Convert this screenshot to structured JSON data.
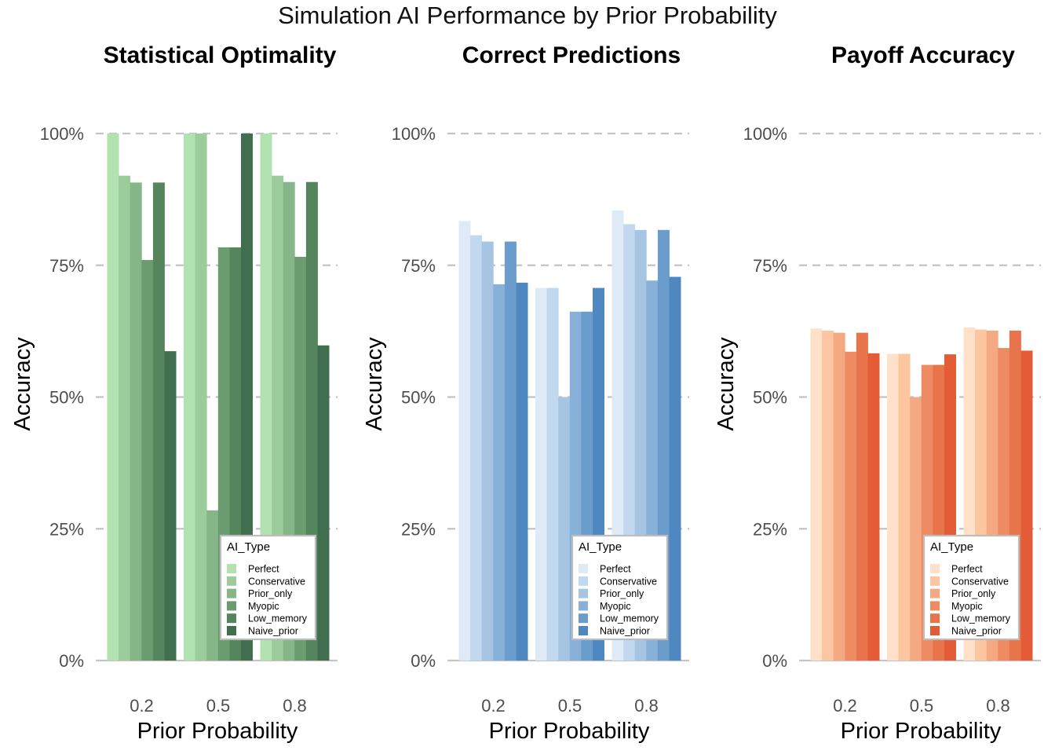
{
  "figure": {
    "title": "Simulation AI Performance by Prior Probability"
  },
  "chart_data": [
    {
      "type": "bar",
      "title": "Statistical Optimality",
      "xlabel": "Prior Probability",
      "ylabel": "Accuracy",
      "categories": [
        "0.2",
        "0.5",
        "0.8"
      ],
      "ylim": [
        0,
        1
      ],
      "yticks": [
        "0%",
        "25%",
        "50%",
        "75%",
        "100%"
      ],
      "grid": "horizontal dashed",
      "legend": {
        "title": "AI_Type",
        "placement": "bottom-right"
      },
      "series": [
        {
          "name": "Perfect",
          "color": "#b3e2b1",
          "values": [
            1.0,
            1.0,
            1.0
          ]
        },
        {
          "name": "Conservative",
          "color": "#9ccb9c",
          "values": [
            0.92,
            1.0,
            0.92
          ]
        },
        {
          "name": "Prior_only",
          "color": "#86b587",
          "values": [
            0.907,
            0.285,
            0.908
          ]
        },
        {
          "name": "Myopic",
          "color": "#6b9c6f",
          "values": [
            0.76,
            0.784,
            0.766
          ]
        },
        {
          "name": "Low_memory",
          "color": "#55855d",
          "values": [
            0.907,
            0.784,
            0.908
          ]
        },
        {
          "name": "Naive_prior",
          "color": "#416e4e",
          "values": [
            0.587,
            1.0,
            0.598
          ]
        }
      ]
    },
    {
      "type": "bar",
      "title": "Correct Predictions",
      "xlabel": "Prior Probability",
      "ylabel": "Accuracy",
      "categories": [
        "0.2",
        "0.5",
        "0.8"
      ],
      "ylim": [
        0,
        1
      ],
      "yticks": [
        "0%",
        "25%",
        "50%",
        "75%",
        "100%"
      ],
      "grid": "horizontal dashed",
      "legend": {
        "title": "AI_Type",
        "placement": "bottom-right"
      },
      "series": [
        {
          "name": "Perfect",
          "color": "#deebf7",
          "values": [
            0.834,
            0.707,
            0.854
          ]
        },
        {
          "name": "Conservative",
          "color": "#c2d8ee",
          "values": [
            0.807,
            0.707,
            0.828
          ]
        },
        {
          "name": "Prior_only",
          "color": "#a5c5e2",
          "values": [
            0.795,
            0.5,
            0.817
          ]
        },
        {
          "name": "Myopic",
          "color": "#87b1d8",
          "values": [
            0.714,
            0.662,
            0.721
          ]
        },
        {
          "name": "Low_memory",
          "color": "#6a9dcc",
          "values": [
            0.795,
            0.662,
            0.817
          ]
        },
        {
          "name": "Naive_prior",
          "color": "#4f88c0",
          "values": [
            0.717,
            0.707,
            0.728
          ]
        }
      ]
    },
    {
      "type": "bar",
      "title": "Payoff Accuracy",
      "xlabel": "Prior Probability",
      "ylabel": "Accuracy",
      "categories": [
        "0.2",
        "0.5",
        "0.8"
      ],
      "ylim": [
        0,
        1
      ],
      "yticks": [
        "0%",
        "25%",
        "50%",
        "75%",
        "100%"
      ],
      "grid": "horizontal dashed",
      "legend": {
        "title": "AI_Type",
        "placement": "bottom-right"
      },
      "series": [
        {
          "name": "Perfect",
          "color": "#fee1c8",
          "values": [
            0.63,
            0.582,
            0.632
          ]
        },
        {
          "name": "Conservative",
          "color": "#fbc6a0",
          "values": [
            0.626,
            0.582,
            0.628
          ]
        },
        {
          "name": "Prior_only",
          "color": "#f5a983",
          "values": [
            0.622,
            0.5,
            0.626
          ]
        },
        {
          "name": "Myopic",
          "color": "#ee8b62",
          "values": [
            0.586,
            0.561,
            0.593
          ]
        },
        {
          "name": "Low_memory",
          "color": "#e8744c",
          "values": [
            0.622,
            0.561,
            0.626
          ]
        },
        {
          "name": "Naive_prior",
          "color": "#e35c37",
          "values": [
            0.583,
            0.581,
            0.588
          ]
        }
      ]
    }
  ]
}
